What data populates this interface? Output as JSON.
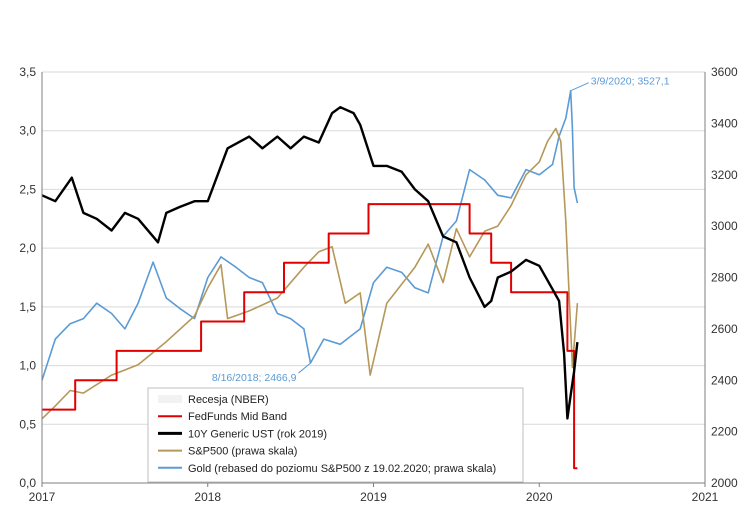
{
  "chart_data": {
    "type": "line",
    "x_ticks": [
      "2017",
      "2018",
      "2019",
      "2020",
      "2021"
    ],
    "x_range": [
      2017.0,
      2021.0
    ],
    "ylim_left": [
      0.0,
      3.5
    ],
    "ylim_right": [
      2000,
      3600
    ],
    "yticks_left": [
      "0,0",
      "0,5",
      "1,0",
      "1,5",
      "2,0",
      "2,5",
      "3,0",
      "3,5"
    ],
    "yticks_right": [
      "2000",
      "2200",
      "2400",
      "2600",
      "2800",
      "3000",
      "3200",
      "3400",
      "3600"
    ],
    "yticks_left_values": [
      0,
      0.5,
      1.0,
      1.5,
      2.0,
      2.5,
      3.0,
      3.5
    ],
    "yticks_right_values": [
      2000,
      2200,
      2400,
      2600,
      2800,
      3000,
      3200,
      3400,
      3600
    ],
    "gridlines": true,
    "legend_position": "bottom-center",
    "colors": {
      "recession": "#f2f2f2",
      "fedfunds": "#e00000",
      "ust10y": "#000000",
      "sp500": "#b5985a",
      "gold": "#5b9bd5",
      "grid": "#d9d9d9",
      "axis": "#7f7f7f"
    },
    "annotations": [
      {
        "text": "3/9/2020; 3527,1",
        "x": 2020.19,
        "y": 3527.1,
        "axis": "right"
      },
      {
        "text": "8/16/2018; 2466,9",
        "x": 2018.62,
        "y": 2466.9,
        "axis": "right"
      }
    ],
    "series": [
      {
        "name": "Recesja (NBER)",
        "axis": "left",
        "style": "area",
        "x": [],
        "y": []
      },
      {
        "name": "FedFunds Mid Band",
        "axis": "left",
        "style": "step",
        "x": [
          2017.0,
          2017.2,
          2017.45,
          2017.96,
          2018.22,
          2018.46,
          2018.73,
          2018.97,
          2019.58,
          2019.71,
          2019.83,
          2020.17,
          2020.21,
          2020.23
        ],
        "y": [
          0.625,
          0.875,
          1.125,
          1.375,
          1.625,
          1.875,
          2.125,
          2.375,
          2.125,
          1.875,
          1.625,
          1.125,
          0.125,
          0.125
        ]
      },
      {
        "name": "10Y Generic UST (rok 2019)",
        "axis": "left",
        "style": "line",
        "x": [
          2017.0,
          2017.08,
          2017.18,
          2017.25,
          2017.33,
          2017.42,
          2017.5,
          2017.58,
          2017.7,
          2017.75,
          2017.83,
          2017.92,
          2018.0,
          2018.08,
          2018.12,
          2018.25,
          2018.33,
          2018.42,
          2018.5,
          2018.58,
          2018.67,
          2018.75,
          2018.8,
          2018.88,
          2018.92,
          2019.0,
          2019.08,
          2019.17,
          2019.25,
          2019.33,
          2019.42,
          2019.5,
          2019.58,
          2019.67,
          2019.71,
          2019.75,
          2019.83,
          2019.92,
          2020.0,
          2020.08,
          2020.12,
          2020.15,
          2020.17,
          2020.19,
          2020.21,
          2020.23
        ],
        "y": [
          2.45,
          2.4,
          2.6,
          2.3,
          2.25,
          2.15,
          2.3,
          2.25,
          2.05,
          2.3,
          2.35,
          2.4,
          2.4,
          2.7,
          2.85,
          2.95,
          2.85,
          2.95,
          2.85,
          2.95,
          2.9,
          3.15,
          3.2,
          3.15,
          3.05,
          2.7,
          2.7,
          2.65,
          2.5,
          2.4,
          2.1,
          2.05,
          1.75,
          1.5,
          1.55,
          1.75,
          1.8,
          1.9,
          1.85,
          1.65,
          1.55,
          1.1,
          0.55,
          0.75,
          0.95,
          1.2
        ]
      },
      {
        "name": "S&P500 (prawa skala)",
        "axis": "right",
        "style": "line",
        "x": [
          2017.0,
          2017.08,
          2017.17,
          2017.25,
          2017.42,
          2017.58,
          2017.75,
          2017.92,
          2018.0,
          2018.08,
          2018.12,
          2018.25,
          2018.42,
          2018.58,
          2018.67,
          2018.75,
          2018.83,
          2018.92,
          2018.98,
          2019.08,
          2019.25,
          2019.33,
          2019.42,
          2019.5,
          2019.58,
          2019.67,
          2019.75,
          2019.83,
          2019.92,
          2020.0,
          2020.05,
          2020.1,
          2020.13,
          2020.16,
          2020.2,
          2020.23
        ],
        "y": [
          2250,
          2300,
          2360,
          2350,
          2420,
          2460,
          2550,
          2650,
          2760,
          2850,
          2640,
          2670,
          2720,
          2840,
          2900,
          2920,
          2700,
          2740,
          2420,
          2700,
          2840,
          2930,
          2780,
          2990,
          2880,
          2980,
          3000,
          3080,
          3200,
          3250,
          3330,
          3380,
          3330,
          3020,
          2450,
          2700
        ]
      },
      {
        "name": "Gold (rebased do poziomu S&P500 z 19.02.2020; prawa skala)",
        "axis": "right",
        "style": "line",
        "x": [
          2017.0,
          2017.08,
          2017.17,
          2017.25,
          2017.33,
          2017.42,
          2017.5,
          2017.58,
          2017.67,
          2017.75,
          2017.83,
          2017.92,
          2018.0,
          2018.08,
          2018.17,
          2018.25,
          2018.33,
          2018.42,
          2018.5,
          2018.58,
          2018.62,
          2018.7,
          2018.8,
          2018.92,
          2019.0,
          2019.08,
          2019.17,
          2019.25,
          2019.33,
          2019.42,
          2019.5,
          2019.58,
          2019.67,
          2019.75,
          2019.83,
          2019.92,
          2020.0,
          2020.08,
          2020.12,
          2020.16,
          2020.19,
          2020.2,
          2020.21,
          2020.23
        ],
        "y": [
          2400,
          2560,
          2620,
          2640,
          2700,
          2660,
          2600,
          2700,
          2860,
          2720,
          2680,
          2640,
          2800,
          2880,
          2840,
          2800,
          2780,
          2660,
          2640,
          2600,
          2467,
          2560,
          2540,
          2600,
          2780,
          2840,
          2820,
          2760,
          2740,
          2960,
          3020,
          3220,
          3180,
          3120,
          3110,
          3220,
          3200,
          3240,
          3350,
          3420,
          3527,
          3380,
          3150,
          3090
        ]
      }
    ]
  },
  "legend": {
    "items": [
      {
        "label": "Recesja (NBER)",
        "key": "recession"
      },
      {
        "label": "FedFunds Mid Band",
        "key": "fedfunds"
      },
      {
        "label": "10Y Generic UST (rok 2019)",
        "key": "ust10y"
      },
      {
        "label": "S&P500 (prawa skala)",
        "key": "sp500"
      },
      {
        "label": "Gold (rebased do poziomu S&P500 z 19.02.2020; prawa skala)",
        "key": "gold"
      }
    ]
  }
}
